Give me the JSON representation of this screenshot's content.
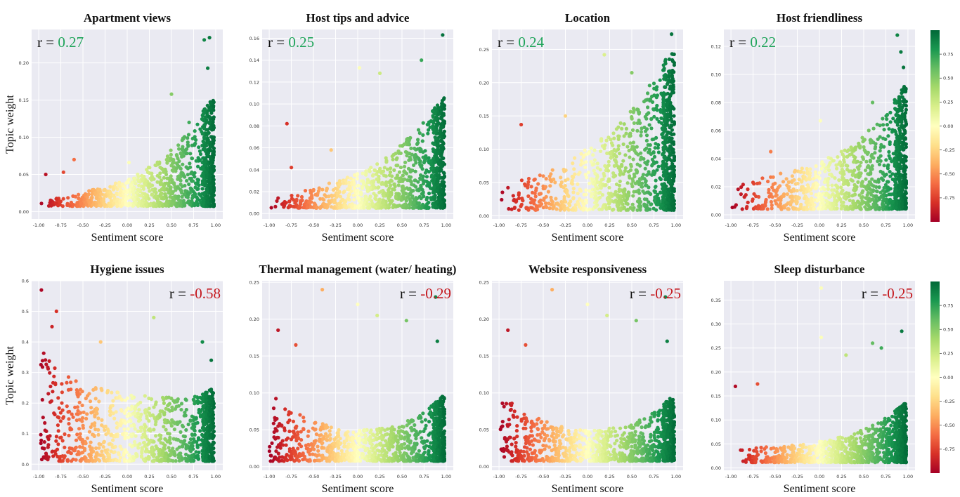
{
  "figure": {
    "colorbar_ticks": [
      0.75,
      0.5,
      0.25,
      0.0,
      -0.25,
      -0.5,
      -0.75
    ],
    "colorbar_tick_labels": [
      "0.75",
      "0.50",
      "0.25",
      "0.00",
      "-0.25",
      "-0.50",
      "-0.75"
    ],
    "colormap": "RdYlGn",
    "colors": {
      "positive_r": "#1fa45a",
      "negative_r": "#c4161c",
      "plot_bg": "#eaeaf2",
      "grid": "#ffffff"
    }
  },
  "chart_data": [
    {
      "type": "scatter",
      "title": "Apartment views",
      "xlabel": "Sentiment score",
      "ylabel": "Topic weight",
      "r_prefix": "r = ",
      "r": "0.27",
      "r_sign": "pos",
      "r_pos": "left",
      "xlim": [
        -1.08,
        1.08
      ],
      "ylim": [
        -0.01,
        0.245
      ],
      "xticks": [
        -1,
        -0.75,
        -0.5,
        -0.25,
        0,
        0.25,
        0.5,
        0.75,
        1
      ],
      "xtick_labels": [
        "-1.00",
        "-0.75",
        "-0.50",
        "-0.25",
        "0.00",
        "0.25",
        "0.50",
        "0.75",
        "1.00"
      ],
      "yticks": [
        0,
        0.05,
        0.1,
        0.15,
        0.2
      ],
      "ytick_labels": [
        "0.00",
        "0.05",
        "0.10",
        "0.15",
        "0.20"
      ],
      "trend": "rising",
      "dense_max": [
        0.013,
        0.02,
        0.028,
        0.038,
        0.052,
        0.075,
        0.11,
        0.16
      ],
      "outliers": [
        [
          0.87,
          0.231
        ],
        [
          0.93,
          0.234
        ],
        [
          0.91,
          0.193
        ],
        [
          0.5,
          0.158
        ],
        [
          -0.6,
          0.07
        ],
        [
          -0.92,
          0.05
        ],
        [
          -0.72,
          0.053
        ],
        [
          0.02,
          0.066
        ],
        [
          0.7,
          0.12
        ]
      ]
    },
    {
      "type": "scatter",
      "title": "Host tips and advice",
      "xlabel": "Sentiment score",
      "ylabel": "",
      "r_prefix": "r = ",
      "r": "0.25",
      "r_sign": "pos",
      "r_pos": "left",
      "xlim": [
        -1.08,
        1.08
      ],
      "ylim": [
        -0.005,
        0.168
      ],
      "xticks": [
        -1,
        -0.75,
        -0.5,
        -0.25,
        0,
        0.25,
        0.5,
        0.75,
        1
      ],
      "xtick_labels": [
        "-1.00",
        "-0.75",
        "-0.50",
        "-0.25",
        "0.00",
        "0.25",
        "0.50",
        "0.75",
        "1.00"
      ],
      "yticks": [
        0,
        0.02,
        0.04,
        0.06,
        0.08,
        0.1,
        0.12,
        0.14,
        0.16
      ],
      "ytick_labels": [
        "0.00",
        "0.02",
        "0.04",
        "0.06",
        "0.08",
        "0.10",
        "0.12",
        "0.14",
        "0.16"
      ],
      "trend": "rising",
      "dense_max": [
        0.012,
        0.018,
        0.025,
        0.032,
        0.042,
        0.058,
        0.08,
        0.11
      ],
      "outliers": [
        [
          0.96,
          0.163
        ],
        [
          -0.8,
          0.082
        ],
        [
          0.02,
          0.133
        ],
        [
          0.25,
          0.128
        ],
        [
          0.72,
          0.14
        ],
        [
          -0.75,
          0.042
        ],
        [
          -0.3,
          0.058
        ]
      ]
    },
    {
      "type": "scatter",
      "title": "Location",
      "xlabel": "Sentiment score",
      "ylabel": "",
      "r_prefix": "r =  ",
      "r": "0.24",
      "r_sign": "pos",
      "r_pos": "left",
      "xlim": [
        -1.08,
        1.08
      ],
      "ylim": [
        -0.005,
        0.28
      ],
      "xticks": [
        -1,
        -0.75,
        -0.5,
        -0.25,
        0,
        0.25,
        0.5,
        0.75,
        1
      ],
      "xtick_labels": [
        "-1.00",
        "-0.75",
        "-0.50",
        "-0.25",
        "0.00",
        "0.25",
        "0.50",
        "0.75",
        "1.00"
      ],
      "yticks": [
        0,
        0.05,
        0.1,
        0.15,
        0.2,
        0.25
      ],
      "ytick_labels": [
        "0.00",
        "0.05",
        "0.10",
        "0.15",
        "0.20",
        "0.25"
      ],
      "trend": "rising_strong",
      "dense_max": [
        0.04,
        0.055,
        0.07,
        0.09,
        0.115,
        0.15,
        0.2,
        0.26
      ],
      "outliers": [
        [
          0.95,
          0.273
        ],
        [
          0.19,
          0.242
        ],
        [
          -0.75,
          0.137
        ],
        [
          -0.25,
          0.15
        ],
        [
          0.5,
          0.215
        ]
      ]
    },
    {
      "type": "scatter",
      "title": "Host friendliness",
      "xlabel": "Sentiment score",
      "ylabel": "",
      "r_prefix": "r = ",
      "r": "0.22",
      "r_sign": "pos",
      "r_pos": "left",
      "xlim": [
        -1.08,
        1.08
      ],
      "ylim": [
        -0.003,
        0.132
      ],
      "xticks": [
        -1,
        -0.75,
        -0.5,
        -0.25,
        0,
        0.25,
        0.5,
        0.75,
        1
      ],
      "xtick_labels": [
        "-1.00",
        "-0.75",
        "-0.50",
        "-0.25",
        "0.00",
        "0.25",
        "0.50",
        "0.75",
        "1.00"
      ],
      "yticks": [
        0,
        0.02,
        0.04,
        0.06,
        0.08,
        0.1,
        0.12
      ],
      "ytick_labels": [
        "0.00",
        "0.02",
        "0.04",
        "0.06",
        "0.08",
        "0.10",
        "0.12"
      ],
      "trend": "rising",
      "dense_max": [
        0.02,
        0.025,
        0.03,
        0.035,
        0.042,
        0.052,
        0.07,
        0.095
      ],
      "outliers": [
        [
          0.88,
          0.128
        ],
        [
          0.92,
          0.116
        ],
        [
          0.95,
          0.105
        ],
        [
          -0.55,
          0.045
        ],
        [
          0.01,
          0.067
        ],
        [
          0.6,
          0.08
        ]
      ]
    },
    {
      "type": "scatter",
      "title": "Hygiene issues",
      "xlabel": "Sentiment score",
      "ylabel": "Topic weight",
      "r_prefix": "r = ",
      "r": "-0.58",
      "r_sign": "neg",
      "r_pos": "right",
      "xlim": [
        -1.08,
        1.08
      ],
      "ylim": [
        -0.02,
        0.6
      ],
      "xticks": [
        -1,
        -0.75,
        -0.5,
        -0.25,
        0,
        0.25,
        0.5,
        0.75,
        1
      ],
      "xtick_labels": [
        "-1.00",
        "-0.75",
        "-0.50",
        "-0.25",
        "0.00",
        "0.25",
        "0.50",
        "0.75",
        "1.00"
      ],
      "yticks": [
        0,
        0.1,
        0.2,
        0.3,
        0.4,
        0.5,
        0.6
      ],
      "ytick_labels": [
        "0.0",
        "0.1",
        "0.2",
        "0.3",
        "0.4",
        "0.5",
        "0.6"
      ],
      "trend": "falling",
      "dense_max": [
        0.38,
        0.3,
        0.26,
        0.24,
        0.23,
        0.22,
        0.22,
        0.25
      ],
      "outliers": [
        [
          -0.97,
          0.57
        ],
        [
          -0.8,
          0.5
        ],
        [
          -0.85,
          0.45
        ],
        [
          0.3,
          0.48
        ],
        [
          0.85,
          0.4
        ],
        [
          -0.3,
          0.4
        ],
        [
          0.95,
          0.34
        ]
      ]
    },
    {
      "type": "scatter",
      "title": "Thermal management (water/ heating)",
      "xlabel": "Sentiment score",
      "ylabel": "",
      "r_prefix": "r = ",
      "r": "-0.29",
      "r_sign": "neg",
      "r_pos": "right",
      "xlim": [
        -1.08,
        1.08
      ],
      "ylim": [
        -0.005,
        0.252
      ],
      "xticks": [
        -1,
        -0.75,
        -0.5,
        -0.25,
        0,
        0.25,
        0.5,
        0.75,
        1
      ],
      "xtick_labels": [
        "-1.00",
        "-0.75",
        "-0.50",
        "-0.25",
        "0.00",
        "0.25",
        "0.50",
        "0.75",
        "1.00"
      ],
      "yticks": [
        0,
        0.05,
        0.1,
        0.15,
        0.2,
        0.25
      ],
      "ytick_labels": [
        "0.00",
        "0.05",
        "0.10",
        "0.15",
        "0.20",
        "0.25"
      ],
      "trend": "u_shape",
      "dense_max": [
        0.1,
        0.075,
        0.06,
        0.05,
        0.05,
        0.055,
        0.07,
        0.1
      ],
      "outliers": [
        [
          -0.4,
          0.24
        ],
        [
          0.0,
          0.22
        ],
        [
          0.22,
          0.205
        ],
        [
          0.55,
          0.198
        ],
        [
          -0.9,
          0.185
        ],
        [
          0.88,
          0.23
        ],
        [
          0.9,
          0.17
        ],
        [
          -0.7,
          0.165
        ]
      ]
    },
    {
      "type": "scatter",
      "title": "Website responsiveness",
      "xlabel": "Sentiment score",
      "ylabel": "",
      "r_prefix": "r = ",
      "r": "-0.25",
      "r_sign": "neg",
      "r_pos": "right",
      "xlim": [
        -1.08,
        1.08
      ],
      "ylim": [
        -0.005,
        0.252
      ],
      "xticks": [
        -1,
        -0.75,
        -0.5,
        -0.25,
        0,
        0.25,
        0.5,
        0.75,
        1
      ],
      "xtick_labels": [
        "-1.00",
        "-0.75",
        "-0.50",
        "-0.25",
        "0.00",
        "0.25",
        "0.50",
        "0.75",
        "1.00"
      ],
      "yticks": [
        0,
        0.05,
        0.1,
        0.15,
        0.2,
        0.25
      ],
      "ytick_labels": [
        "0.00",
        "0.05",
        "0.10",
        "0.15",
        "0.20",
        "0.25"
      ],
      "trend": "u_shape",
      "dense_max": [
        0.1,
        0.075,
        0.06,
        0.05,
        0.05,
        0.055,
        0.07,
        0.1
      ],
      "outliers": [
        [
          -0.4,
          0.24
        ],
        [
          0.0,
          0.22
        ],
        [
          0.22,
          0.205
        ],
        [
          0.55,
          0.198
        ],
        [
          -0.9,
          0.185
        ],
        [
          0.88,
          0.23
        ],
        [
          0.9,
          0.17
        ],
        [
          -0.7,
          0.165
        ]
      ]
    },
    {
      "type": "scatter",
      "title": "Sleep disturbance",
      "xlabel": "Sentiment score",
      "ylabel": "",
      "r_prefix": "r = ",
      "r": "-0.25",
      "r_sign": "neg",
      "r_pos": "right",
      "xlim": [
        -1.08,
        1.08
      ],
      "ylim": [
        -0.005,
        0.39
      ],
      "xticks": [
        -1,
        -0.75,
        -0.5,
        -0.25,
        0,
        0.25,
        0.5,
        0.75,
        1
      ],
      "xtick_labels": [
        "-1.00",
        "-0.75",
        "-0.50",
        "-0.25",
        "0.00",
        "0.25",
        "0.50",
        "0.75",
        "1.00"
      ],
      "yticks": [
        0,
        0.05,
        0.1,
        0.15,
        0.2,
        0.25,
        0.3,
        0.35
      ],
      "ytick_labels": [
        "0.00",
        "0.05",
        "0.10",
        "0.15",
        "0.20",
        "0.25",
        "0.30",
        "0.35"
      ],
      "trend": "rising",
      "dense_max": [
        0.05,
        0.045,
        0.045,
        0.05,
        0.06,
        0.075,
        0.1,
        0.14
      ],
      "outliers": [
        [
          0.02,
          0.375
        ],
        [
          0.02,
          0.272
        ],
        [
          0.93,
          0.285
        ],
        [
          -0.95,
          0.17
        ],
        [
          -0.7,
          0.175
        ],
        [
          0.3,
          0.235
        ],
        [
          0.6,
          0.26
        ],
        [
          0.7,
          0.25
        ]
      ]
    }
  ]
}
